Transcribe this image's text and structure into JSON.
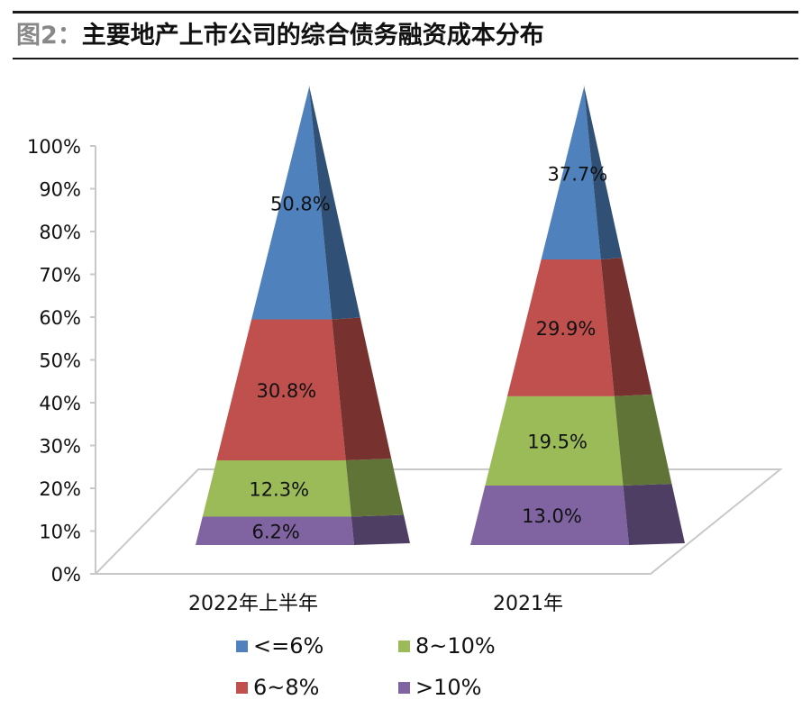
{
  "title": {
    "prefix": "图2：",
    "text": "主要地产上市公司的综合债务融资成本分布"
  },
  "chart_data": {
    "type": "bar",
    "style": "3d-stacked-pyramid",
    "categories": [
      "2022年上半年",
      "2021年"
    ],
    "series": [
      {
        "name": "<=6%",
        "color": "#4f81bd",
        "values": [
          50.8,
          37.7
        ],
        "labels": [
          "50.8%",
          "37.7%"
        ]
      },
      {
        "name": "6~8%",
        "color": "#c0504d",
        "values": [
          30.8,
          29.9
        ],
        "labels": [
          "30.8%",
          "29.9%"
        ]
      },
      {
        "name": "8~10%",
        "color": "#9bbb59",
        "values": [
          12.3,
          19.5
        ],
        "labels": [
          "12.3%",
          "19.5%"
        ]
      },
      {
        "name": ">10%",
        "color": "#8064a2",
        "values": [
          6.2,
          13.0
        ],
        "labels": [
          "6.2%",
          "13.0%"
        ]
      }
    ],
    "stack_order_bottom_to_top": [
      ">10%",
      "8~10%",
      "6~8%",
      "<=6%"
    ],
    "y_ticks": [
      "0%",
      "10%",
      "20%",
      "30%",
      "40%",
      "50%",
      "60%",
      "70%",
      "80%",
      "90%",
      "100%"
    ],
    "ylim": [
      0,
      100
    ],
    "legend_position": "bottom",
    "grid": false
  },
  "legend": {
    "items": [
      {
        "label": "<=6%",
        "color": "#4f81bd"
      },
      {
        "label": "8~10%",
        "color": "#9bbb59"
      },
      {
        "label": "6~8%",
        "color": "#c0504d"
      },
      {
        "label": ">10%",
        "color": "#8064a2"
      }
    ]
  }
}
